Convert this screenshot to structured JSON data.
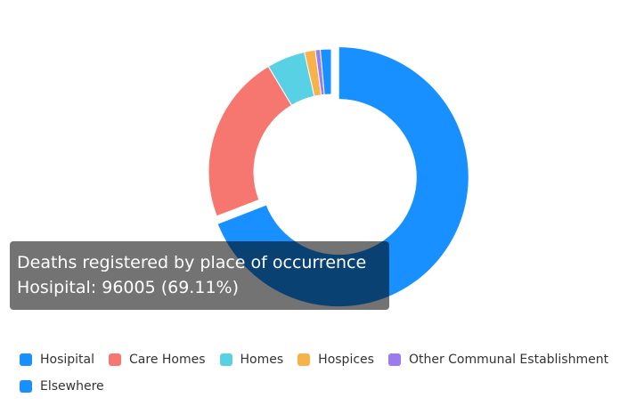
{
  "chart_data": {
    "type": "pie",
    "variant": "donut",
    "title": "",
    "series_name": "Deaths registered by place of occurrence",
    "categories": [
      "Hosipital",
      "Care Homes",
      "Homes",
      "Hospices",
      "Other Communal Establishment",
      "Elsewhere"
    ],
    "values": [
      96005,
      31000,
      7000,
      2000,
      900,
      2000
    ],
    "colors": [
      "#1890ff",
      "#f6776f",
      "#58d1e5",
      "#f8b24a",
      "#9a7cf0",
      "#1890ff"
    ],
    "highlighted_index": 0,
    "legend_position": "bottom"
  },
  "tooltip": {
    "title": "Deaths registered by place of occurrence",
    "line": "Hosipital: 96005 (69.11%)"
  }
}
